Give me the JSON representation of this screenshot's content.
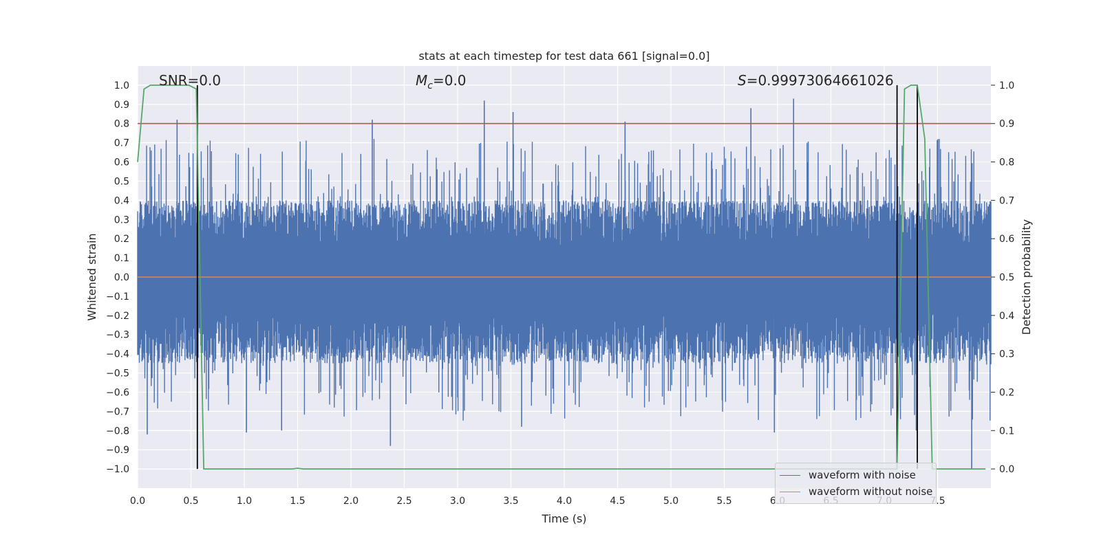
{
  "chart_data": {
    "type": "line",
    "title": "stats at each timestep for test data 661 [signal=0.0]",
    "xlabel": "Time (s)",
    "ylabel": "Whitened strain",
    "y2label": "Detection probability",
    "xlim": [
      0.0,
      8.0
    ],
    "ylim": [
      -1.1,
      1.1
    ],
    "y2lim": [
      -0.05,
      1.05
    ],
    "xticks": [
      0.0,
      0.5,
      1.0,
      1.5,
      2.0,
      2.5,
      3.0,
      3.5,
      4.0,
      4.5,
      5.0,
      5.5,
      6.0,
      6.5,
      7.0,
      7.5
    ],
    "yticks": [
      -1.0,
      -0.9,
      -0.8,
      -0.7,
      -0.6,
      -0.5,
      -0.4,
      -0.3,
      -0.2,
      -0.1,
      0.0,
      0.1,
      0.2,
      0.3,
      0.4,
      0.5,
      0.6,
      0.7,
      0.8,
      0.9,
      1.0
    ],
    "y2ticks": [
      0.0,
      0.1,
      0.2,
      0.3,
      0.4,
      0.5,
      0.6,
      0.7,
      0.8,
      0.9,
      1.0
    ],
    "annotations": {
      "snr": "SNR=0.0",
      "mc_symbol": "M",
      "mc_sub": "c",
      "mc_value": "=0.0",
      "s_symbol": "S",
      "s_value": "=0.99973064661026"
    },
    "threshold": {
      "y2": 0.9,
      "color": "#c44e52"
    },
    "detection_markers_x": [
      0.56,
      7.12,
      7.31
    ],
    "series": [
      {
        "name": "waveform with noise",
        "color": "#4c72b0",
        "axis": "left",
        "envelope": {
          "x_start": 0.0,
          "x_end": 8.0,
          "typical_max": 0.4,
          "typical_min": -0.45
        },
        "peaks": [
          {
            "x": 0.37,
            "y": 0.82
          },
          {
            "x": 2.2,
            "y": 0.82
          },
          {
            "x": 3.25,
            "y": 0.92
          },
          {
            "x": 3.52,
            "y": 0.86
          },
          {
            "x": 4.57,
            "y": 0.81
          },
          {
            "x": 5.75,
            "y": 0.88
          },
          {
            "x": 6.15,
            "y": 0.93
          },
          {
            "x": 2.37,
            "y": -0.88
          },
          {
            "x": 0.09,
            "y": -0.82
          },
          {
            "x": 1.02,
            "y": -0.81
          },
          {
            "x": 5.97,
            "y": -0.81
          },
          {
            "x": 7.3,
            "y": -0.8
          },
          {
            "x": 7.82,
            "y": -1.0
          },
          {
            "x": 1.35,
            "y": -0.8
          },
          {
            "x": 3.6,
            "y": -0.78
          }
        ]
      },
      {
        "name": "waveform without noise",
        "color": "#dd8452",
        "axis": "left",
        "points": [
          {
            "x": 0.0,
            "y": 0.0
          },
          {
            "x": 8.0,
            "y": 0.0
          }
        ]
      },
      {
        "name": "detection probability",
        "color": "#55a868",
        "axis": "right",
        "points": [
          {
            "x": 0.0,
            "y": 0.8
          },
          {
            "x": 0.06,
            "y": 0.99
          },
          {
            "x": 0.12,
            "y": 1.0
          },
          {
            "x": 0.48,
            "y": 1.0
          },
          {
            "x": 0.55,
            "y": 0.99
          },
          {
            "x": 0.62,
            "y": 0.0
          },
          {
            "x": 1.45,
            "y": 0.0
          },
          {
            "x": 1.5,
            "y": 0.002
          },
          {
            "x": 1.55,
            "y": 0.0
          },
          {
            "x": 7.12,
            "y": 0.0
          },
          {
            "x": 7.19,
            "y": 0.99
          },
          {
            "x": 7.25,
            "y": 1.0
          },
          {
            "x": 7.31,
            "y": 1.0
          },
          {
            "x": 7.38,
            "y": 0.86
          },
          {
            "x": 7.45,
            "y": 0.0
          },
          {
            "x": 7.95,
            "y": 0.0
          }
        ]
      }
    ]
  },
  "legend": {
    "noise_label": "waveform with noise",
    "clean_label": "waveform without noise",
    "noise_color": "#4c72b0",
    "clean_color": "#dd8452"
  }
}
